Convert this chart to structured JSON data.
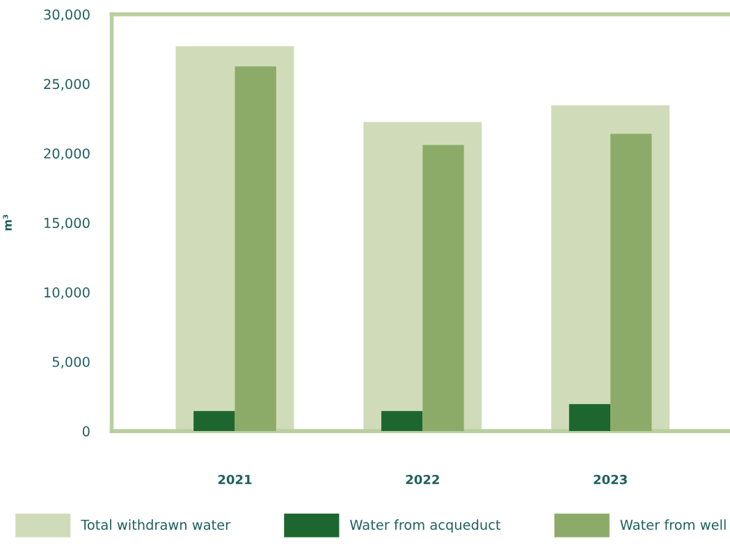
{
  "chart_data": {
    "type": "bar",
    "ylabel": "m³",
    "categories": [
      "2021",
      "2022",
      "2023"
    ],
    "series": [
      {
        "name": "Total withdrawn water",
        "color": "#d0dcb9",
        "values": [
          27700,
          22250,
          23450
        ]
      },
      {
        "name": "Water from acqueduct",
        "color": "#1e6630",
        "values": [
          1450,
          1450,
          1950
        ]
      },
      {
        "name": "Water from well",
        "color": "#8cab68",
        "values": [
          26250,
          20600,
          21400
        ]
      }
    ],
    "ylim": [
      0,
      30000
    ],
    "yticks": [
      {
        "value": 0,
        "label": "0"
      },
      {
        "value": 5000,
        "label": "5,000"
      },
      {
        "value": 10000,
        "label": "10,000"
      },
      {
        "value": 15000,
        "label": "15,000"
      },
      {
        "value": 20000,
        "label": "20,000"
      },
      {
        "value": 25000,
        "label": "25,000"
      },
      {
        "value": 30000,
        "label": "30,000"
      }
    ],
    "grid": false,
    "legend": "bottom"
  }
}
